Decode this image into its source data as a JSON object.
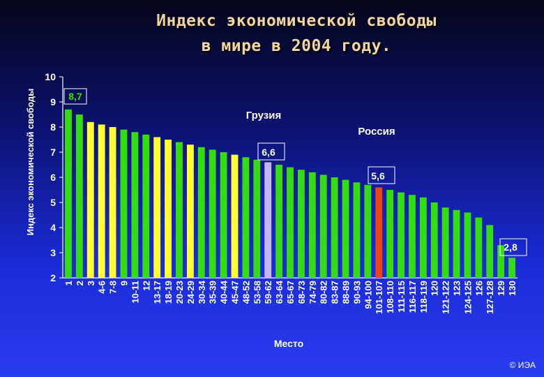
{
  "title_line1": "Индекс экономической свободы",
  "title_line2": "в мире в 2004 году.",
  "copyright": "© ИЭА",
  "chart_data": {
    "type": "bar",
    "title": "Индекс экономической свободы в мире в 2004 году.",
    "xlabel": "Место",
    "ylabel": "Индекс экономической свободы",
    "ylim": [
      2,
      10
    ],
    "yticks": [
      2,
      3,
      4,
      5,
      6,
      7,
      8,
      9,
      10
    ],
    "grid": false,
    "categories": [
      "1",
      "2",
      "3",
      "4-6",
      "7-8",
      "9",
      "10-11",
      "12",
      "13-17",
      "18-19",
      "20-23",
      "24-29",
      "30-34",
      "35-39",
      "40-44",
      "45-47",
      "48-52",
      "53-58",
      "59-62",
      "63-64",
      "65-67",
      "68-73",
      "74-79",
      "80-82",
      "83-87",
      "88-89",
      "90-93",
      "94-100",
      "101-107",
      "108-110",
      "111-115",
      "116-117",
      "118-119",
      "120",
      "121-122",
      "123",
      "124-125",
      "126",
      "127-128",
      "129",
      "130"
    ],
    "values": [
      8.7,
      8.5,
      8.2,
      8.1,
      8.0,
      7.9,
      7.8,
      7.7,
      7.6,
      7.5,
      7.4,
      7.3,
      7.2,
      7.1,
      7.0,
      6.9,
      6.8,
      6.7,
      6.6,
      6.5,
      6.4,
      6.3,
      6.2,
      6.1,
      6.0,
      5.9,
      5.8,
      5.7,
      5.6,
      5.5,
      5.4,
      5.3,
      5.2,
      5.0,
      4.8,
      4.7,
      4.6,
      4.4,
      4.1,
      3.3,
      2.8
    ],
    "colors": [
      "green",
      "green",
      "yellow",
      "yellow",
      "yellow",
      "green",
      "green",
      "green",
      "yellow",
      "yellow",
      "green",
      "yellow",
      "green",
      "green",
      "green",
      "yellow",
      "green",
      "green",
      "lavender",
      "green",
      "green",
      "green",
      "green",
      "green",
      "green",
      "green",
      "green",
      "green",
      "red",
      "green",
      "green",
      "green",
      "green",
      "green",
      "green",
      "green",
      "green",
      "green",
      "green",
      "green",
      "green"
    ],
    "palette": {
      "green": "#33dd11",
      "yellow": "#ffff33",
      "lavender": "#c8b4f0",
      "red": "#ee4411"
    },
    "annotations": [
      {
        "text": "8,7",
        "index": 0,
        "color": "#33dd11"
      },
      {
        "text": "6,6",
        "index": 18,
        "color": "#ffffff",
        "label": "Грузия"
      },
      {
        "text": "5,6",
        "index": 28,
        "color": "#ffffff",
        "label": "Россия"
      },
      {
        "text": "2,8",
        "index": 40,
        "color": "#ffffff"
      }
    ]
  }
}
